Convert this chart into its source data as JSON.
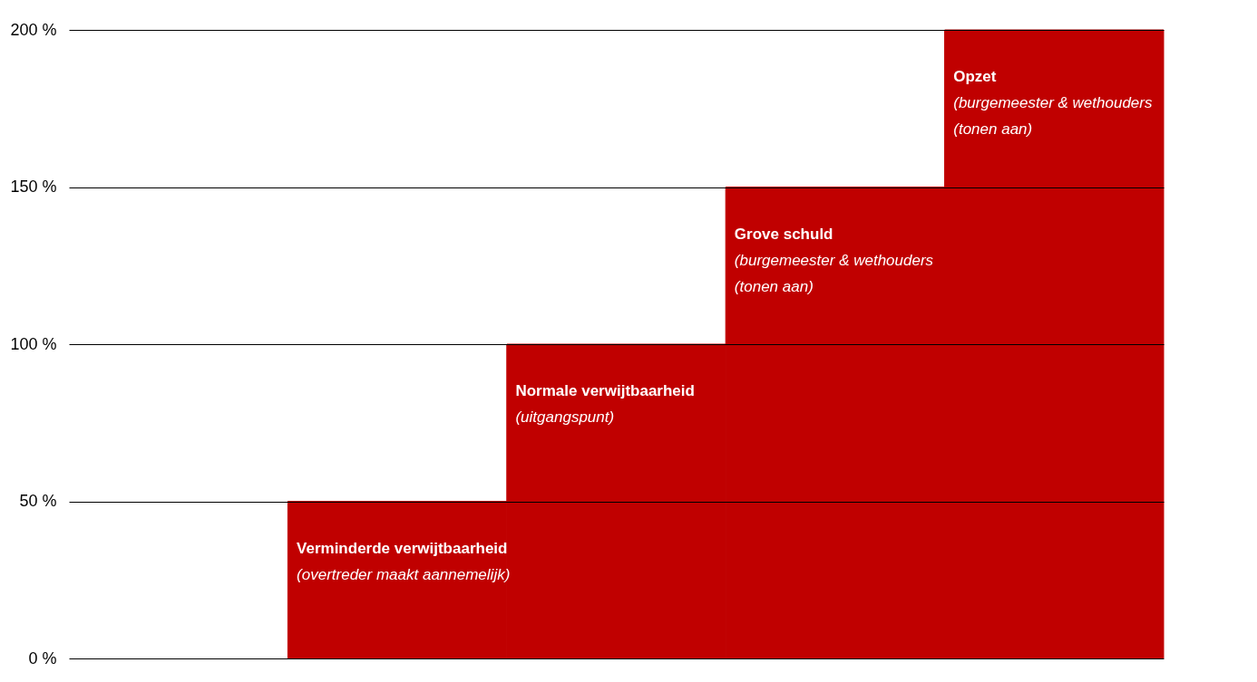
{
  "chart_data": {
    "type": "bar",
    "categories": [
      null,
      null,
      null,
      null,
      null
    ],
    "values": [
      null,
      50,
      100,
      150,
      200
    ],
    "color": "#c00000",
    "ylim": [
      0,
      200
    ],
    "yticks": [
      {
        "value": 0,
        "label": "0 %"
      },
      {
        "value": 50,
        "label": "50 %"
      },
      {
        "value": 100,
        "label": "100 %"
      },
      {
        "value": 150,
        "label": "150 %"
      },
      {
        "value": 200,
        "label": "200 %"
      }
    ],
    "grid": "y",
    "annotations": [
      "Verminderde verwijtbaarheid\n(overtreder maakt aannemelijk)",
      "Normale verwijtbaarheid\n(uitgangspunt)",
      "Grove schuld\n(burgemeester & wethouders\n(tonen aan)",
      "Opzet\n(burgemeester & wethouders\n(tonen aan)"
    ]
  }
}
